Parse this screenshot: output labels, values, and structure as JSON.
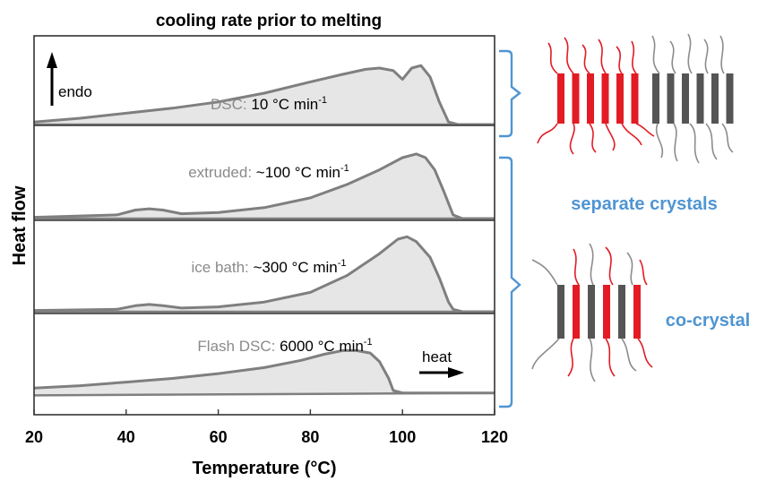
{
  "chart_data": {
    "type": "area",
    "title": "cooling rate prior to melting",
    "xlabel": "Temperature (°C)",
    "ylabel": "Heat flow",
    "xlim": [
      20,
      120
    ],
    "x_ticks": [
      "20",
      "40",
      "60",
      "80",
      "100",
      "120"
    ],
    "panels": [
      {
        "name_gray": "DSC:",
        "name_black": "10 °C min",
        "exponent": "-1",
        "baseline": [
          [
            20,
            0
          ],
          [
            120,
            0
          ]
        ],
        "curve": [
          [
            20,
            0.02
          ],
          [
            30,
            0.05
          ],
          [
            40,
            0.09
          ],
          [
            50,
            0.13
          ],
          [
            60,
            0.18
          ],
          [
            70,
            0.25
          ],
          [
            80,
            0.34
          ],
          [
            87,
            0.4
          ],
          [
            92,
            0.44
          ],
          [
            95,
            0.45
          ],
          [
            98,
            0.43
          ],
          [
            100,
            0.36
          ],
          [
            102,
            0.45
          ],
          [
            104,
            0.47
          ],
          [
            106,
            0.38
          ],
          [
            108,
            0.18
          ],
          [
            110,
            0.02
          ],
          [
            112,
            0
          ],
          [
            120,
            0
          ]
        ]
      },
      {
        "name_gray": "extruded:",
        "name_black": "~100 °C min",
        "exponent": "-1",
        "baseline": [
          [
            20,
            0
          ],
          [
            120,
            0
          ]
        ],
        "curve": [
          [
            20,
            0.01
          ],
          [
            38,
            0.03
          ],
          [
            42,
            0.07
          ],
          [
            45,
            0.08
          ],
          [
            48,
            0.07
          ],
          [
            52,
            0.04
          ],
          [
            60,
            0.05
          ],
          [
            70,
            0.09
          ],
          [
            80,
            0.17
          ],
          [
            88,
            0.28
          ],
          [
            95,
            0.4
          ],
          [
            100,
            0.5
          ],
          [
            103,
            0.53
          ],
          [
            105,
            0.5
          ],
          [
            107,
            0.4
          ],
          [
            109,
            0.22
          ],
          [
            111,
            0.03
          ],
          [
            113,
            0
          ],
          [
            120,
            0
          ]
        ]
      },
      {
        "name_gray": "ice bath:",
        "name_black": "~300 °C min",
        "exponent": "-1",
        "baseline": [
          [
            20,
            0
          ],
          [
            120,
            0
          ]
        ],
        "curve": [
          [
            20,
            0.01
          ],
          [
            38,
            0.02
          ],
          [
            42,
            0.05
          ],
          [
            45,
            0.06
          ],
          [
            48,
            0.05
          ],
          [
            52,
            0.03
          ],
          [
            60,
            0.04
          ],
          [
            70,
            0.08
          ],
          [
            80,
            0.16
          ],
          [
            88,
            0.3
          ],
          [
            95,
            0.48
          ],
          [
            99,
            0.6
          ],
          [
            101,
            0.62
          ],
          [
            103,
            0.58
          ],
          [
            106,
            0.45
          ],
          [
            108,
            0.28
          ],
          [
            110,
            0.08
          ],
          [
            111,
            0.02
          ],
          [
            113,
            0
          ],
          [
            120,
            0
          ]
        ]
      },
      {
        "name_gray": "Flash DSC:",
        "name_black": "6000 °C min",
        "exponent": "-1",
        "baseline": [
          [
            20,
            -0.04
          ],
          [
            120,
            -0.02
          ]
        ],
        "curve": [
          [
            20,
            0.02
          ],
          [
            30,
            0.04
          ],
          [
            40,
            0.07
          ],
          [
            50,
            0.1
          ],
          [
            60,
            0.14
          ],
          [
            70,
            0.19
          ],
          [
            78,
            0.25
          ],
          [
            83,
            0.3
          ],
          [
            87,
            0.33
          ],
          [
            90,
            0.33
          ],
          [
            93,
            0.31
          ],
          [
            95,
            0.24
          ],
          [
            97,
            0.1
          ],
          [
            98,
            0.0
          ],
          [
            100,
            -0.02
          ],
          [
            120,
            -0.02
          ]
        ]
      }
    ],
    "annotations": {
      "endo": "endo",
      "heat": "heat"
    },
    "right_labels": {
      "separate": "separate crystals",
      "cocrystal": "co-crystal"
    },
    "colors": {
      "curve": "#7f7f7f",
      "fill": "#e6e6e6",
      "gray_text": "#8a8a8a",
      "bracket": "#4f95d2",
      "red_chain": "#e21b24",
      "dark_bar": "#555555",
      "gray_chain": "#8c8c8c"
    }
  }
}
